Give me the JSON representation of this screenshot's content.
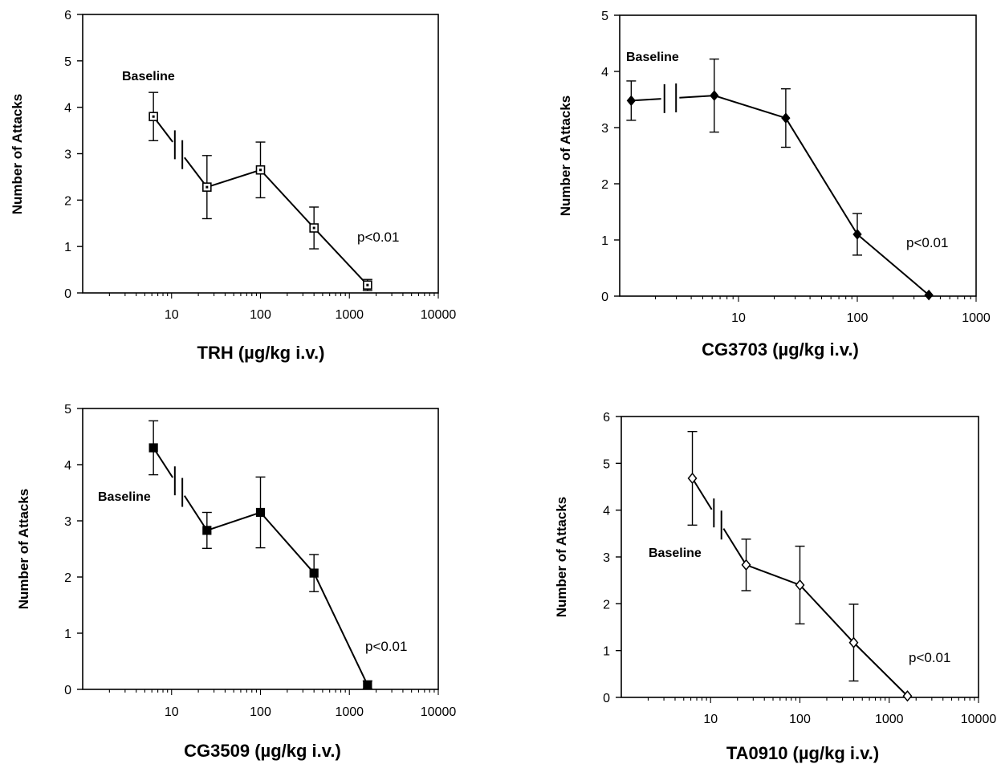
{
  "chart_data": [
    {
      "type": "line",
      "xlabel": "TRH (µg/kg i.v.)",
      "ylabel": "Number of Attacks",
      "xscale": "log",
      "xlim": [
        1,
        10000
      ],
      "ylim": [
        0,
        6
      ],
      "yticks": [
        "0",
        "1",
        "2",
        "3",
        "4",
        "5",
        "6"
      ],
      "xticks": [
        "10",
        "100",
        "1000",
        "10000"
      ],
      "marker": "open-square",
      "baseline_label": "Baseline",
      "annotation": "p<0.01",
      "baseline": {
        "y": 3.8,
        "err": 0.52
      },
      "x": [
        25,
        100,
        400,
        1600
      ],
      "y": [
        2.28,
        2.65,
        1.4,
        0.17
      ],
      "err": [
        0.68,
        0.6,
        0.45,
        0.12
      ]
    },
    {
      "type": "line",
      "xlabel": "CG3703 (µg/kg i.v.)",
      "ylabel": "Number of Attacks",
      "xscale": "log",
      "xlim": [
        1,
        1000
      ],
      "ylim": [
        0,
        5
      ],
      "yticks": [
        "0",
        "1",
        "2",
        "3",
        "4",
        "5"
      ],
      "xticks": [
        "10",
        "100",
        "1000"
      ],
      "marker": "filled-diamond",
      "baseline_label": "Baseline",
      "annotation": "p<0.01",
      "baseline": {
        "y": 3.48,
        "err": 0.35
      },
      "x": [
        6.25,
        25,
        100,
        400
      ],
      "y": [
        3.57,
        3.17,
        1.1,
        0.02
      ],
      "err": [
        0.65,
        0.52,
        0.37,
        0.0
      ]
    },
    {
      "type": "line",
      "xlabel": "CG3509 (µg/kg i.v.)",
      "ylabel": "Number of Attacks",
      "xscale": "log",
      "xlim": [
        1,
        10000
      ],
      "ylim": [
        0,
        5
      ],
      "yticks": [
        "0",
        "1",
        "2",
        "3",
        "4",
        "5"
      ],
      "xticks": [
        "10",
        "100",
        "1000",
        "10000"
      ],
      "marker": "filled-square",
      "baseline_label": "Baseline",
      "annotation": "p<0.01",
      "baseline": {
        "y": 4.3,
        "err": 0.48
      },
      "x": [
        25,
        100,
        400,
        1600
      ],
      "y": [
        2.83,
        3.15,
        2.07,
        0.08
      ],
      "err": [
        0.32,
        0.63,
        0.33,
        0.07
      ]
    },
    {
      "type": "line",
      "xlabel": "TA0910 (µg/kg i.v.)",
      "ylabel": "Number of Attacks",
      "xscale": "log",
      "xlim": [
        1,
        10000
      ],
      "ylim": [
        0,
        6
      ],
      "yticks": [
        "0",
        "1",
        "2",
        "3",
        "4",
        "5",
        "6"
      ],
      "xticks": [
        "10",
        "100",
        "1000",
        "10000"
      ],
      "marker": "open-diamond",
      "baseline_label": "Baseline",
      "annotation": "p<0.01",
      "baseline": {
        "y": 4.68,
        "err": 1.0
      },
      "x": [
        25,
        100,
        400,
        1600
      ],
      "y": [
        2.83,
        2.4,
        1.17,
        0.03
      ],
      "err": [
        0.55,
        0.83,
        0.82,
        0.0
      ]
    }
  ]
}
